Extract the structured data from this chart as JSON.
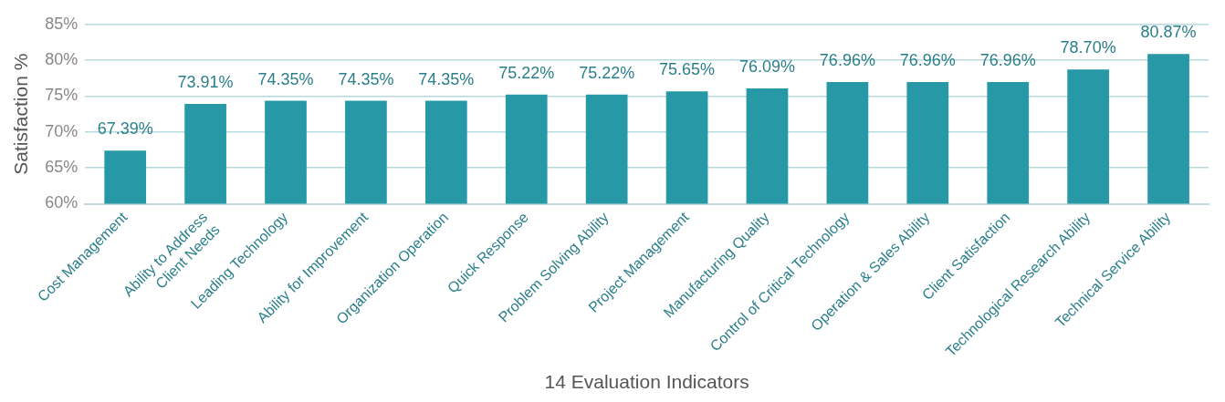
{
  "chart_data": {
    "type": "bar",
    "xlabel": "14 Evaluation Indicators",
    "ylabel": "Satisfaction %",
    "categories": [
      "Cost Management",
      "Ability to Address\nClient Needs",
      "Leading Technology",
      "Ability for Improvement",
      "Organization Operation",
      "Quick Response",
      "Problem Solving Ability",
      "Project Management",
      "Manufacturing Quality",
      "Control of Critical Technology",
      "Operation & Sales Ability",
      "Client Satisfaction",
      "Technological Research Ability",
      "Technical Service Ability"
    ],
    "values": [
      67.39,
      73.91,
      74.35,
      74.35,
      74.35,
      75.22,
      75.22,
      75.65,
      76.09,
      76.96,
      76.96,
      76.96,
      78.7,
      80.87
    ],
    "value_labels": [
      "67.39%",
      "73.91%",
      "74.35%",
      "74.35%",
      "74.35%",
      "75.22%",
      "75.22%",
      "75.65%",
      "76.09%",
      "76.96%",
      "76.96%",
      "76.96%",
      "78.70%",
      "80.87%"
    ],
    "color": "#2799a6",
    "ylim": [
      60,
      85
    ],
    "yticks": [
      {
        "value": 60,
        "label": "60%"
      },
      {
        "value": 65,
        "label": "65%"
      },
      {
        "value": 70,
        "label": "70%"
      },
      {
        "value": 75,
        "label": "75%"
      },
      {
        "value": 80,
        "label": "80%"
      },
      {
        "value": 85,
        "label": "85%"
      }
    ],
    "grid": "y",
    "legend": false
  }
}
